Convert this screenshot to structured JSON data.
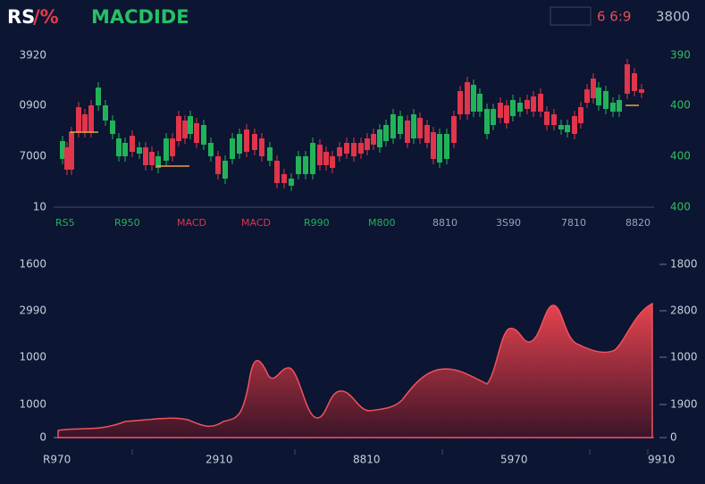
{
  "header": {
    "title_a": "RS",
    "title_b": "/%",
    "title_c": "MACDIDE",
    "time": "6 6:9",
    "price": "3800"
  },
  "top_panel": {
    "left_labels": [
      "3920",
      "0900",
      "7000",
      "10"
    ],
    "right_labels": [
      "390",
      "400",
      "400",
      "400"
    ],
    "indicator_labels": [
      "RS5",
      "R950",
      "MACD",
      "MACD",
      "R990",
      "M800",
      "8810",
      "3S90",
      "7810",
      "8820"
    ]
  },
  "bottom_panel": {
    "left_labels": [
      "1600",
      "2990",
      "1000",
      "1000",
      "0"
    ],
    "right_labels": [
      "1800",
      "2800",
      "1000",
      "1900",
      "0"
    ],
    "x_labels": [
      "R970",
      "2910",
      "8810",
      "5970",
      "9910"
    ]
  }
}
